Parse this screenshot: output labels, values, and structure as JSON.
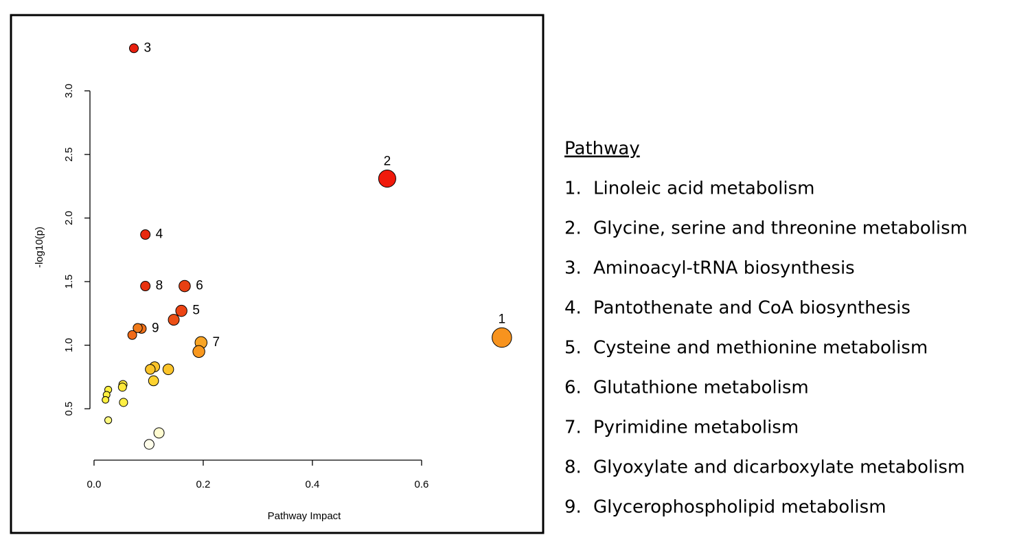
{
  "chart_data": {
    "type": "scatter",
    "xlabel": "Pathway Impact",
    "ylabel": "-log10(p)",
    "xlim": [
      -0.01,
      0.8
    ],
    "ylim": [
      0.15,
      3.45
    ],
    "xticks": [
      {
        "value": 0,
        "label": "0.0"
      },
      0.2,
      0.4,
      0.6
    ],
    "yticks": [
      0.5,
      {
        "value": 1,
        "label": "1.0"
      },
      1.5,
      {
        "value": 2,
        "label": "2.0"
      },
      2.5,
      {
        "value": 3,
        "label": "3.0"
      }
    ],
    "x": [
      0.747,
      0.537,
      0.073,
      0.094,
      0.16,
      0.166,
      0.196,
      0.094,
      0.087,
      0.146,
      0.08,
      0.07,
      0.192,
      0.111,
      0.103,
      0.136,
      0.109,
      0.053,
      0.052,
      0.026,
      0.023,
      0.021,
      0.054,
      0.026,
      0.119,
      0.101
    ],
    "y": [
      1.06,
      2.31,
      3.335,
      1.87,
      1.27,
      1.465,
      1.02,
      1.465,
      1.13,
      1.2,
      1.135,
      1.08,
      0.95,
      0.83,
      0.81,
      0.81,
      0.72,
      0.69,
      0.67,
      0.65,
      0.61,
      0.57,
      0.55,
      0.41,
      0.31,
      0.22
    ],
    "point_labels": [
      "1",
      "2",
      "3",
      "4",
      "5",
      "6",
      "7",
      "8",
      "9",
      null,
      null,
      null,
      null,
      null,
      null,
      null,
      null,
      null,
      null,
      null,
      null,
      null,
      null,
      null,
      null,
      null
    ],
    "colors": [
      "#f7931e",
      "#f01a0c",
      "#e8200f",
      "#e82a10",
      "#ec4414",
      "#e84012",
      "#f9a526",
      "#e8320f",
      "#f07018",
      "#ec5016",
      "#f07a1a",
      "#f06a18",
      "#f9981e",
      "#fcc42a",
      "#fcc42a",
      "#fcc42a",
      "#fdd230",
      "#fde83a",
      "#fde83a",
      "#fff040",
      "#fff040",
      "#fff040",
      "#fff044",
      "#fffa80",
      "#fffbd0",
      "#fffdea"
    ],
    "legend": {
      "title": "Pathway",
      "items": [
        {
          "number": "1.",
          "name": "Linoleic acid metabolism"
        },
        {
          "number": "2.",
          "name": "Glycine, serine and threonine metabolism"
        },
        {
          "number": "3.",
          "name": "Aminoacyl-tRNA biosynthesis"
        },
        {
          "number": "4.",
          "name": "Pantothenate and CoA biosynthesis"
        },
        {
          "number": "5.",
          "name": "Cysteine and methionine metabolism"
        },
        {
          "number": "6.",
          "name": "Glutathione metabolism"
        },
        {
          "number": "7.",
          "name": "Pyrimidine metabolism"
        },
        {
          "number": "8.",
          "name": "Glyoxylate and dicarboxylate metabolism"
        },
        {
          "number": "9.",
          "name": "Glycerophospholipid metabolism"
        }
      ]
    }
  }
}
